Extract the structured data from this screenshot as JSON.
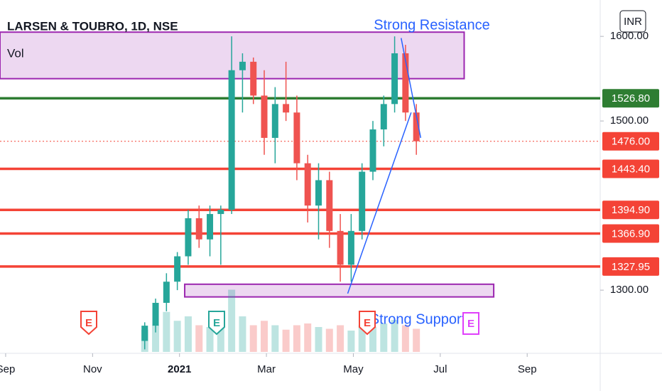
{
  "chart_data": {
    "type": "candlestick",
    "title": "LARSEN & TOUBRO, 1D, NSE",
    "legend_label": "Vol",
    "currency": "INR",
    "up_color": "#26a69a",
    "down_color": "#ef5350",
    "x": [
      3.2,
      3.45,
      3.7,
      3.95,
      4.2,
      4.45,
      4.7,
      4.95,
      5.2,
      5.45,
      5.7,
      5.95,
      6.2,
      6.45,
      6.7,
      6.95,
      7.2,
      7.45,
      7.7,
      7.95,
      8.2,
      8.45,
      8.7,
      8.95,
      9.2,
      9.45
    ],
    "open": [
      1240,
      1258,
      1285,
      1310,
      1340,
      1385,
      1360,
      1390,
      1395,
      1560,
      1570,
      1530,
      1480,
      1520,
      1510,
      1450,
      1400,
      1430,
      1370,
      1330,
      1370,
      1440,
      1490,
      1520,
      1580,
      1510
    ],
    "high": [
      1262,
      1290,
      1320,
      1345,
      1395,
      1400,
      1400,
      1400,
      1600,
      1580,
      1575,
      1560,
      1540,
      1570,
      1530,
      1460,
      1450,
      1440,
      1390,
      1390,
      1450,
      1500,
      1530,
      1600,
      1590,
      1520
    ],
    "low": [
      1230,
      1250,
      1275,
      1300,
      1330,
      1350,
      1340,
      1330,
      1390,
      1510,
      1520,
      1460,
      1450,
      1500,
      1430,
      1380,
      1360,
      1350,
      1310,
      1310,
      1360,
      1430,
      1470,
      1510,
      1500,
      1460
    ],
    "close": [
      1258,
      1285,
      1310,
      1340,
      1385,
      1360,
      1390,
      1395,
      1560,
      1570,
      1530,
      1480,
      1520,
      1510,
      1450,
      1400,
      1430,
      1370,
      1330,
      1370,
      1440,
      1490,
      1520,
      1580,
      1510,
      1476
    ],
    "volume": [
      2.5,
      3.0,
      4.5,
      3.5,
      4.0,
      3.0,
      2.8,
      3.2,
      7.0,
      4.0,
      3.0,
      3.5,
      3.0,
      2.5,
      3.0,
      3.2,
      2.8,
      2.6,
      3.0,
      2.4,
      3.0,
      2.8,
      3.2,
      3.6,
      3.0,
      2.6
    ],
    "vlim": [
      0,
      8
    ],
    "xlim": [
      -0.13,
      13.68
    ],
    "xticks": [
      {
        "value": 0,
        "label": "Sep"
      },
      {
        "value": 2,
        "label": "Nov"
      },
      {
        "value": 4,
        "label": "2021"
      },
      {
        "value": 6,
        "label": "Mar"
      },
      {
        "value": 8,
        "label": "May"
      },
      {
        "value": 10,
        "label": "Jul"
      },
      {
        "value": 12,
        "label": "Sep"
      }
    ],
    "ylim": [
      1227,
      1643
    ],
    "yticks": [
      {
        "value": 1300,
        "label": "1300.00"
      },
      {
        "value": 1500,
        "label": "1500.00"
      },
      {
        "value": 1600,
        "label": "1600.00"
      }
    ],
    "levels": [
      {
        "value": 1526.8,
        "label": "1526.80",
        "color": "#2e7d32",
        "style": "solid"
      },
      {
        "value": 1476,
        "label": "1476.00",
        "color": "#f44336",
        "style": "dotted"
      },
      {
        "value": 1443.4,
        "label": "1443.40",
        "color": "#f44336",
        "style": "solid"
      },
      {
        "value": 1394.9,
        "label": "1394.90",
        "color": "#f44336",
        "style": "solid"
      },
      {
        "value": 1366.9,
        "label": "1366.90",
        "color": "#f44336",
        "style": "solid"
      },
      {
        "value": 1327.95,
        "label": "1327.95",
        "color": "#f44336",
        "style": "solid"
      }
    ],
    "zones": [
      {
        "xlim": [
          -0.13,
          10.55
        ],
        "ylim": [
          1550,
          1605
        ]
      },
      {
        "xlim": [
          4.12,
          11.23
        ],
        "ylim": [
          1292,
          1307
        ]
      }
    ],
    "zone_color": "#9c27b0",
    "trendlines": [
      {
        "x": [
          7.87,
          9.33
        ],
        "y": [
          1296,
          1510
        ]
      },
      {
        "x": [
          9.1,
          9.55
        ],
        "y": [
          1598,
          1480
        ]
      }
    ],
    "trend_color": "#2962ff",
    "annotations": [
      "Strong Resistance",
      "Strong Support"
    ],
    "events": [
      "E",
      "E",
      "E",
      "E"
    ]
  }
}
